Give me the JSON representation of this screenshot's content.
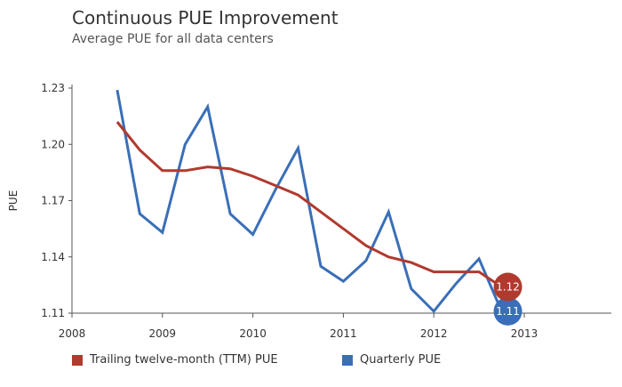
{
  "chart_data": {
    "type": "line",
    "title": "Continuous PUE Improvement",
    "subtitle": "Average PUE for all data centers",
    "ylabel": "PUE",
    "xlabel": "",
    "xlim": [
      2008,
      2013.7
    ],
    "ylim": [
      1.11,
      1.235
    ],
    "x_ticks": [
      "2008",
      "2009",
      "2010",
      "2011",
      "2012",
      "2013"
    ],
    "y_ticks": [
      "1.11",
      "1.14",
      "1.17",
      "1.20",
      "1.23"
    ],
    "grid": false,
    "legend_position": "bottom",
    "series": [
      {
        "name": "Trailing twelve-month (TTM) PUE",
        "color": "#b03a2e",
        "x": [
          2008.5,
          2008.75,
          2009.0,
          2009.25,
          2009.5,
          2009.75,
          2010.0,
          2010.25,
          2010.5,
          2010.75,
          2011.0,
          2011.25,
          2011.5,
          2011.75,
          2012.0,
          2012.25,
          2012.5,
          2012.75
        ],
        "values": [
          1.212,
          1.197,
          1.186,
          1.186,
          1.188,
          1.187,
          1.183,
          1.178,
          1.173,
          1.164,
          1.155,
          1.146,
          1.14,
          1.137,
          1.132,
          1.132,
          1.132,
          1.124
        ],
        "end_label": "1.12"
      },
      {
        "name": "Quarterly PUE",
        "color": "#3a6fb7",
        "x": [
          2008.5,
          2008.75,
          2009.0,
          2009.25,
          2009.5,
          2009.75,
          2010.0,
          2010.25,
          2010.5,
          2010.75,
          2011.0,
          2011.25,
          2011.5,
          2011.75,
          2012.0,
          2012.25,
          2012.5,
          2012.75
        ],
        "values": [
          1.229,
          1.163,
          1.153,
          1.2,
          1.22,
          1.163,
          1.152,
          1.176,
          1.198,
          1.135,
          1.127,
          1.138,
          1.164,
          1.123,
          1.111,
          1.126,
          1.139,
          1.111
        ],
        "end_label": "1.11"
      }
    ]
  }
}
